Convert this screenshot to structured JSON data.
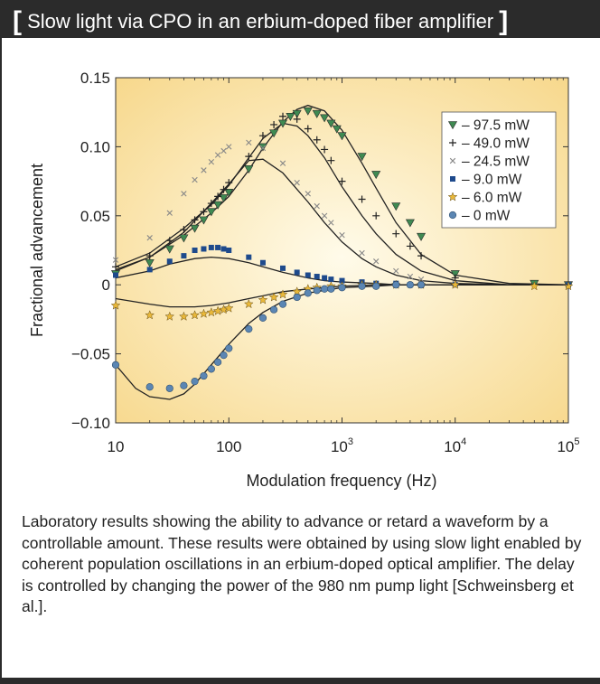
{
  "header": {
    "left_bracket": "[",
    "title": "Slow light via CPO in an erbium-doped fiber amplifier",
    "right_bracket": "]"
  },
  "caption": "Laboratory results showing the ability to advance or retard a waveform by a controllable amount. These results were obtained by using slow light enabled by coherent population oscillations in an erbium-doped optical amplifier. The delay is controlled by changing the power of the 980 nm pump light [Schweinsberg et al.].",
  "colors": {
    "header_bg": "#2b2b2b",
    "plot_center": "#fffbea",
    "plot_edge": "#f7d88c",
    "triangle": "#3f8a52",
    "square": "#1e4a8c",
    "star": "#e9b83a",
    "circle": "#5b86b3",
    "fit_line": "#222222"
  },
  "chart_data": {
    "type": "scatter",
    "xlabel": "Modulation frequency (Hz)",
    "ylabel": "Fractional advancement",
    "x_scale": "log",
    "xlim": [
      10,
      100000
    ],
    "ylim": [
      -0.1,
      0.15
    ],
    "x_ticks": [
      {
        "value": 10,
        "base": "10",
        "exp": ""
      },
      {
        "value": 100,
        "base": "100",
        "exp": ""
      },
      {
        "value": 1000,
        "base": "10",
        "exp": "3"
      },
      {
        "value": 10000,
        "base": "10",
        "exp": "4"
      },
      {
        "value": 100000,
        "base": "10",
        "exp": "5"
      }
    ],
    "y_ticks": [
      {
        "value": 0.15,
        "label": "0.15"
      },
      {
        "value": 0.1,
        "label": "0.10"
      },
      {
        "value": 0.05,
        "label": "0.05"
      },
      {
        "value": 0,
        "label": "0"
      },
      {
        "value": -0.05,
        "label": "−0.05"
      },
      {
        "value": -0.1,
        "label": "−0.10"
      }
    ],
    "grid": false,
    "legend_position": "top-right",
    "series": [
      {
        "name": "97.5 mW",
        "marker": "triangle",
        "color": "#3f8a52",
        "x": [
          10,
          20,
          30,
          40,
          50,
          60,
          70,
          80,
          90,
          100,
          150,
          200,
          250,
          300,
          350,
          400,
          500,
          600,
          700,
          800,
          900,
          1000,
          1500,
          2000,
          3000,
          4000,
          5000,
          10000,
          50000,
          100000
        ],
        "y": [
          0.008,
          0.016,
          0.026,
          0.034,
          0.041,
          0.047,
          0.053,
          0.058,
          0.063,
          0.067,
          0.084,
          0.1,
          0.11,
          0.117,
          0.122,
          0.124,
          0.126,
          0.124,
          0.121,
          0.117,
          0.113,
          0.108,
          0.093,
          0.08,
          0.057,
          0.045,
          0.035,
          0.008,
          0.001,
          0.0
        ]
      },
      {
        "name": "49.0 mW",
        "marker": "plus",
        "color": "#222222",
        "x": [
          10,
          20,
          30,
          40,
          50,
          60,
          70,
          80,
          90,
          100,
          150,
          200,
          250,
          300,
          400,
          500,
          600,
          700,
          800,
          1000,
          1500,
          2000,
          3000,
          4000,
          5000,
          10000,
          100000
        ],
        "y": [
          0.013,
          0.021,
          0.032,
          0.04,
          0.047,
          0.053,
          0.059,
          0.064,
          0.069,
          0.074,
          0.093,
          0.108,
          0.116,
          0.122,
          0.12,
          0.113,
          0.105,
          0.098,
          0.09,
          0.075,
          0.062,
          0.05,
          0.037,
          0.028,
          0.021,
          0.005,
          0.0
        ]
      },
      {
        "name": "24.5 mW",
        "marker": "x",
        "color": "#888888",
        "x": [
          10,
          20,
          30,
          40,
          50,
          60,
          70,
          80,
          90,
          100,
          150,
          200,
          300,
          400,
          500,
          600,
          700,
          800,
          1000,
          1500,
          2000,
          3000,
          4000,
          5000,
          10000,
          100000
        ],
        "y": [
          0.018,
          0.034,
          0.052,
          0.066,
          0.076,
          0.083,
          0.089,
          0.094,
          0.097,
          0.1,
          0.103,
          0.099,
          0.088,
          0.074,
          0.066,
          0.057,
          0.05,
          0.045,
          0.036,
          0.023,
          0.017,
          0.01,
          0.006,
          0.004,
          0.001,
          0.0
        ]
      },
      {
        "name": "9.0 mW",
        "marker": "square",
        "color": "#1e4a8c",
        "x": [
          10,
          20,
          30,
          40,
          50,
          60,
          70,
          80,
          90,
          100,
          150,
          200,
          300,
          400,
          500,
          600,
          700,
          800,
          1000,
          1500,
          2000,
          3000,
          4000,
          5000,
          10000,
          100000
        ],
        "y": [
          0.007,
          0.011,
          0.017,
          0.021,
          0.025,
          0.026,
          0.027,
          0.027,
          0.026,
          0.025,
          0.02,
          0.016,
          0.012,
          0.009,
          0.007,
          0.006,
          0.005,
          0.004,
          0.003,
          0.002,
          0.001,
          0.001,
          0.0,
          0.0,
          0.0,
          0.0
        ]
      },
      {
        "name": "6.0 mW",
        "marker": "star",
        "color": "#e9b83a",
        "x": [
          10,
          20,
          30,
          40,
          50,
          60,
          70,
          80,
          90,
          100,
          150,
          200,
          250,
          300,
          400,
          500,
          600,
          800,
          1000,
          1500,
          2000,
          3000,
          5000,
          10000,
          50000,
          100000
        ],
        "y": [
          -0.015,
          -0.022,
          -0.023,
          -0.023,
          -0.022,
          -0.021,
          -0.02,
          -0.019,
          -0.018,
          -0.017,
          -0.014,
          -0.011,
          -0.009,
          -0.007,
          -0.005,
          -0.003,
          -0.002,
          -0.001,
          -0.001,
          0.0,
          0.0,
          0.0,
          0.0,
          0.0,
          -0.001,
          -0.001
        ]
      },
      {
        "name": "0 mW",
        "marker": "circle",
        "color": "#5b86b3",
        "x": [
          10,
          20,
          30,
          40,
          50,
          60,
          70,
          80,
          90,
          100,
          150,
          200,
          250,
          300,
          400,
          500,
          600,
          700,
          800,
          1000,
          1500,
          2000,
          3000,
          4000,
          5000
        ],
        "y": [
          -0.058,
          -0.074,
          -0.075,
          -0.073,
          -0.07,
          -0.066,
          -0.061,
          -0.056,
          -0.051,
          -0.046,
          -0.032,
          -0.024,
          -0.018,
          -0.014,
          -0.009,
          -0.006,
          -0.004,
          -0.003,
          -0.003,
          -0.002,
          -0.001,
          -0.001,
          0.0,
          0.0,
          0.0
        ]
      }
    ],
    "fit_curves": [
      {
        "x": [
          10,
          20,
          40,
          70,
          100,
          150,
          200,
          300,
          400,
          500,
          700,
          1000,
          1500,
          2000,
          3000,
          5000,
          10000,
          30000,
          100000
        ],
        "y": [
          0.01,
          0.02,
          0.036,
          0.052,
          0.064,
          0.083,
          0.099,
          0.118,
          0.127,
          0.13,
          0.126,
          0.112,
          0.088,
          0.07,
          0.045,
          0.022,
          0.007,
          0.001,
          0.0
        ]
      },
      {
        "x": [
          10,
          20,
          40,
          70,
          100,
          150,
          200,
          300,
          400,
          500,
          700,
          1000,
          1500,
          2000,
          3000,
          5000,
          10000,
          30000,
          100000
        ],
        "y": [
          0.013,
          0.023,
          0.041,
          0.058,
          0.072,
          0.092,
          0.106,
          0.117,
          0.115,
          0.108,
          0.092,
          0.071,
          0.05,
          0.037,
          0.022,
          0.01,
          0.003,
          0.0,
          0.0
        ]
      },
      {
        "x": [
          10,
          20,
          40,
          70,
          100,
          150,
          200,
          300,
          500,
          700,
          1000,
          1500,
          2000,
          3000,
          5000,
          10000,
          30000,
          100000
        ],
        "y": [
          0.011,
          0.02,
          0.038,
          0.059,
          0.073,
          0.09,
          0.091,
          0.081,
          0.06,
          0.045,
          0.031,
          0.019,
          0.013,
          0.007,
          0.003,
          0.001,
          0.0,
          0.0
        ]
      },
      {
        "x": [
          10,
          20,
          30,
          50,
          70,
          100,
          150,
          200,
          300,
          500,
          700,
          1000,
          2000,
          3000,
          5000,
          10000,
          30000,
          100000
        ],
        "y": [
          0.005,
          0.01,
          0.015,
          0.019,
          0.02,
          0.019,
          0.016,
          0.013,
          0.009,
          0.005,
          0.003,
          0.002,
          0.001,
          0.0,
          0.0,
          0.0,
          0.0,
          0.0
        ]
      },
      {
        "x": [
          10,
          20,
          30,
          50,
          70,
          100,
          150,
          200,
          300,
          500,
          700,
          1000,
          2000,
          3000,
          5000,
          10000,
          30000,
          100000
        ],
        "y": [
          -0.01,
          -0.014,
          -0.016,
          -0.016,
          -0.015,
          -0.013,
          -0.01,
          -0.008,
          -0.005,
          -0.003,
          -0.002,
          -0.001,
          0.0,
          0.0,
          0.0,
          0.0,
          0.0,
          0.0
        ]
      },
      {
        "x": [
          10,
          15,
          20,
          30,
          40,
          50,
          70,
          100,
          150,
          200,
          300,
          500,
          700,
          1000,
          2000,
          3000,
          5000,
          10000,
          30000,
          100000
        ],
        "y": [
          -0.058,
          -0.075,
          -0.081,
          -0.083,
          -0.079,
          -0.072,
          -0.058,
          -0.043,
          -0.028,
          -0.02,
          -0.012,
          -0.006,
          -0.004,
          -0.002,
          -0.001,
          0.0,
          0.0,
          0.0,
          0.0,
          0.0
        ]
      }
    ]
  }
}
